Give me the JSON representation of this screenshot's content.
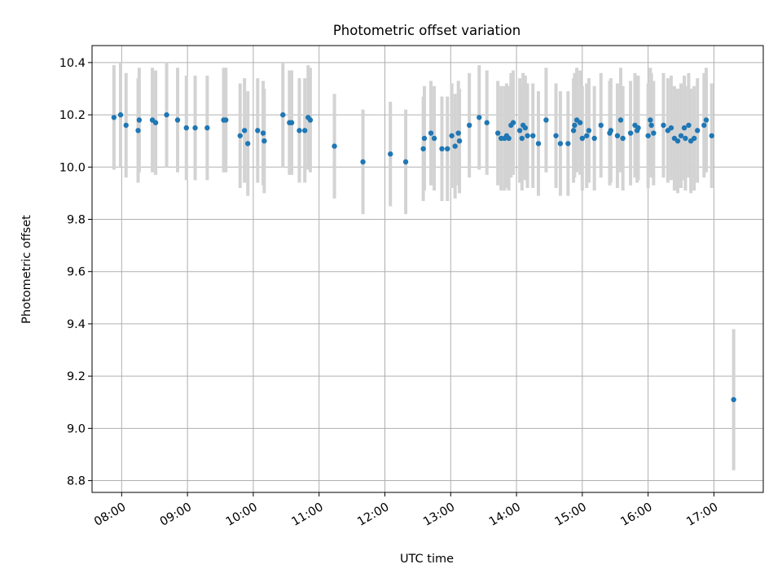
{
  "chart_data": {
    "type": "scatter",
    "title": "Photometric offset variation",
    "xlabel": "UTC time",
    "ylabel": "Photometric offset",
    "x_tick_labels": [
      "08:00",
      "09:00",
      "10:00",
      "11:00",
      "12:00",
      "13:00",
      "14:00",
      "15:00",
      "16:00",
      "17:00"
    ],
    "x_ticks_hours": [
      8,
      9,
      10,
      11,
      12,
      13,
      14,
      15,
      16,
      17
    ],
    "y_ticks": [
      8.8,
      9.0,
      9.2,
      9.4,
      9.6,
      9.8,
      10.0,
      10.2,
      10.4
    ],
    "y_tick_labels": [
      "8.8",
      "9.0",
      "9.2",
      "9.4",
      "9.6",
      "9.8",
      "10.0",
      "10.2",
      "10.4"
    ],
    "xlim_hours": [
      7.55,
      17.75
    ],
    "ylim": [
      8.755,
      10.465
    ],
    "grid": true,
    "colors": {
      "point": "#1f77b4",
      "errorbar": "#d3d3d3",
      "grid": "#b0b0b0",
      "axis": "#000000"
    },
    "series": [
      {
        "errorbar_halfwidth": 0.2,
        "points": [
          {
            "t": "07:53",
            "y": 10.19
          },
          {
            "t": "07:59",
            "y": 10.2
          },
          {
            "t": "08:04",
            "y": 10.16
          },
          {
            "t": "08:15",
            "y": 10.14
          },
          {
            "t": "08:16",
            "y": 10.18
          },
          {
            "t": "08:28",
            "y": 10.18
          },
          {
            "t": "08:31",
            "y": 10.17
          },
          {
            "t": "08:41",
            "y": 10.2
          },
          {
            "t": "08:51",
            "y": 10.18
          },
          {
            "t": "08:59",
            "y": 10.15
          },
          {
            "t": "09:07",
            "y": 10.15
          },
          {
            "t": "09:18",
            "y": 10.15
          },
          {
            "t": "09:33",
            "y": 10.18
          },
          {
            "t": "09:35",
            "y": 10.18
          },
          {
            "t": "09:48",
            "y": 10.12
          },
          {
            "t": "09:52",
            "y": 10.14
          },
          {
            "t": "09:55",
            "y": 10.09
          },
          {
            "t": "10:04",
            "y": 10.14
          },
          {
            "t": "10:09",
            "y": 10.13
          },
          {
            "t": "10:10",
            "y": 10.1
          },
          {
            "t": "10:27",
            "y": 10.2
          },
          {
            "t": "10:33",
            "y": 10.17
          },
          {
            "t": "10:35",
            "y": 10.17
          },
          {
            "t": "10:42",
            "y": 10.14
          },
          {
            "t": "10:47",
            "y": 10.14
          },
          {
            "t": "10:50",
            "y": 10.19
          },
          {
            "t": "10:52",
            "y": 10.18
          },
          {
            "t": "11:14",
            "y": 10.08
          },
          {
            "t": "11:40",
            "y": 10.02
          },
          {
            "t": "12:05",
            "y": 10.05
          },
          {
            "t": "12:19",
            "y": 10.02
          },
          {
            "t": "12:35",
            "y": 10.07
          },
          {
            "t": "12:36",
            "y": 10.11
          },
          {
            "t": "12:42",
            "y": 10.13
          },
          {
            "t": "12:45",
            "y": 10.11
          },
          {
            "t": "12:52",
            "y": 10.07
          },
          {
            "t": "12:57",
            "y": 10.07
          },
          {
            "t": "13:01",
            "y": 10.12
          },
          {
            "t": "13:04",
            "y": 10.08
          },
          {
            "t": "13:07",
            "y": 10.13
          },
          {
            "t": "13:08",
            "y": 10.1
          },
          {
            "t": "13:17",
            "y": 10.16
          },
          {
            "t": "13:26",
            "y": 10.19
          },
          {
            "t": "13:33",
            "y": 10.17
          },
          {
            "t": "13:43",
            "y": 10.13
          },
          {
            "t": "13:46",
            "y": 10.11
          },
          {
            "t": "13:49",
            "y": 10.11
          },
          {
            "t": "13:51",
            "y": 10.12
          },
          {
            "t": "13:53",
            "y": 10.11
          },
          {
            "t": "13:55",
            "y": 10.16
          },
          {
            "t": "13:57",
            "y": 10.17
          },
          {
            "t": "14:03",
            "y": 10.14
          },
          {
            "t": "14:05",
            "y": 10.11
          },
          {
            "t": "14:06",
            "y": 10.16
          },
          {
            "t": "14:08",
            "y": 10.15
          },
          {
            "t": "14:10",
            "y": 10.12
          },
          {
            "t": "14:15",
            "y": 10.12
          },
          {
            "t": "14:20",
            "y": 10.09
          },
          {
            "t": "14:27",
            "y": 10.18
          },
          {
            "t": "14:36",
            "y": 10.12
          },
          {
            "t": "14:40",
            "y": 10.09
          },
          {
            "t": "14:47",
            "y": 10.09
          },
          {
            "t": "14:52",
            "y": 10.14
          },
          {
            "t": "14:53",
            "y": 10.16
          },
          {
            "t": "14:55",
            "y": 10.18
          },
          {
            "t": "14:58",
            "y": 10.17
          },
          {
            "t": "15:00",
            "y": 10.11
          },
          {
            "t": "15:04",
            "y": 10.12
          },
          {
            "t": "15:06",
            "y": 10.14
          },
          {
            "t": "15:11",
            "y": 10.11
          },
          {
            "t": "15:17",
            "y": 10.16
          },
          {
            "t": "15:25",
            "y": 10.13
          },
          {
            "t": "15:26",
            "y": 10.14
          },
          {
            "t": "15:32",
            "y": 10.12
          },
          {
            "t": "15:35",
            "y": 10.18
          },
          {
            "t": "15:37",
            "y": 10.11
          },
          {
            "t": "15:44",
            "y": 10.13
          },
          {
            "t": "15:48",
            "y": 10.16
          },
          {
            "t": "15:50",
            "y": 10.14
          },
          {
            "t": "15:51",
            "y": 10.15
          },
          {
            "t": "16:00",
            "y": 10.12
          },
          {
            "t": "16:02",
            "y": 10.18
          },
          {
            "t": "16:03",
            "y": 10.16
          },
          {
            "t": "16:05",
            "y": 10.13
          },
          {
            "t": "16:14",
            "y": 10.16
          },
          {
            "t": "16:18",
            "y": 10.14
          },
          {
            "t": "16:21",
            "y": 10.15
          },
          {
            "t": "16:24",
            "y": 10.11
          },
          {
            "t": "16:27",
            "y": 10.1
          },
          {
            "t": "16:30",
            "y": 10.12
          },
          {
            "t": "16:33",
            "y": 10.15
          },
          {
            "t": "16:34",
            "y": 10.11
          },
          {
            "t": "16:37",
            "y": 10.16
          },
          {
            "t": "16:39",
            "y": 10.1
          },
          {
            "t": "16:42",
            "y": 10.11
          },
          {
            "t": "16:45",
            "y": 10.14
          },
          {
            "t": "16:51",
            "y": 10.16
          },
          {
            "t": "16:53",
            "y": 10.18
          },
          {
            "t": "16:58",
            "y": 10.12
          },
          {
            "t": "17:18",
            "y": 9.11,
            "err": 0.27
          }
        ]
      }
    ]
  }
}
